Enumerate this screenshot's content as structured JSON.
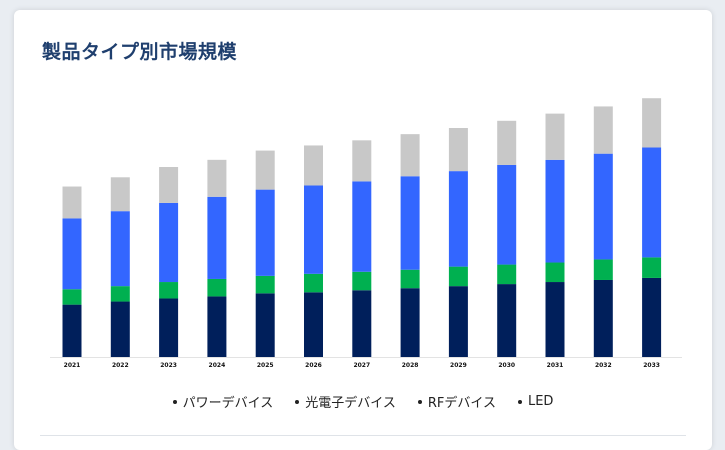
{
  "title": "製品タイプ別市場規模",
  "chart_data": {
    "type": "bar",
    "stacked": true,
    "title": "製品タイプ別市場規模",
    "categories": [
      "2021",
      "2022",
      "2023",
      "2024",
      "2025",
      "2026",
      "2027",
      "2028",
      "2029",
      "2030",
      "2031",
      "2032",
      "2033"
    ],
    "series": [
      {
        "name": "パワーデバイス",
        "color": "#001f5b",
        "values": [
          51,
          54,
          57,
          59,
          62,
          63,
          65,
          67,
          69,
          71,
          73,
          75,
          77
        ]
      },
      {
        "name": "光電子デバイス",
        "color": "#00b050",
        "values": [
          15,
          15,
          16,
          17,
          17,
          18,
          18,
          18,
          19,
          19,
          19,
          20,
          20
        ]
      },
      {
        "name": "RFデバイス",
        "color": "#3366ff",
        "values": [
          69,
          73,
          77,
          80,
          84,
          86,
          88,
          91,
          93,
          97,
          100,
          103,
          107
        ]
      },
      {
        "name": "LED",
        "color": "#c8c8c8",
        "values": [
          31,
          33,
          35,
          36,
          38,
          39,
          40,
          41,
          42,
          43,
          45,
          46,
          48
        ]
      }
    ],
    "ylim": [
      0,
      260
    ],
    "grid": false,
    "legend_position": "bottom"
  }
}
